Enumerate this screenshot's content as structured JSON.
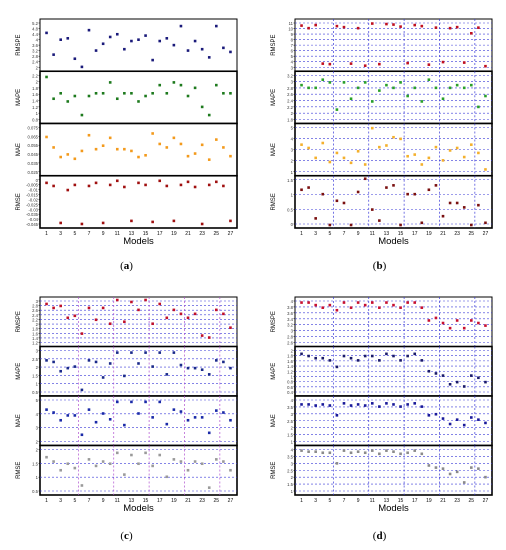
{
  "chart_data": [
    {
      "id": "a",
      "type": "scatter",
      "caption_label": "a",
      "xlabel": "Models",
      "x_ticks": [
        1,
        2,
        3,
        4,
        5,
        6,
        7,
        8,
        9,
        10,
        11,
        12,
        13,
        14,
        15,
        16,
        17,
        18,
        19,
        20,
        21,
        22,
        23,
        24,
        25,
        26,
        27
      ],
      "grid": false,
      "panels": [
        {
          "ylabel": "RMSPE",
          "color": "#1a1a7a",
          "ylim": [
            1.8,
            5.2
          ],
          "tick_labels": [
            "5.2",
            "4.8",
            "4.4",
            "4",
            "3.6",
            "3.2",
            "2.8",
            "2.4",
            "2"
          ],
          "values": [
            4.4,
            2.8,
            3.9,
            4.0,
            2.5,
            1.9,
            4.6,
            3.1,
            3.6,
            4.1,
            4.3,
            3.2,
            3.8,
            3.9,
            4.2,
            2.4,
            3.8,
            4.0,
            3.5,
            4.9,
            3.1,
            3.8,
            3.2,
            2.6,
            4.9,
            3.3,
            3.0
          ]
        },
        {
          "ylabel": "MAPE",
          "color": "#1d7a1d",
          "ylim": [
            0.6,
            2.3
          ],
          "tick_labels": [
            "2.2",
            "2",
            "1.8",
            "1.6",
            "1.4",
            "1.2",
            "1",
            "0.8"
          ],
          "values": [
            2.2,
            1.4,
            1.6,
            1.3,
            1.5,
            0.8,
            1.5,
            1.6,
            1.6,
            2.0,
            1.4,
            1.6,
            1.6,
            1.3,
            1.5,
            1.6,
            1.9,
            1.6,
            2.0,
            1.9,
            1.5,
            1.8,
            1.1,
            0.8,
            1.9,
            1.6,
            1.6
          ]
        },
        {
          "ylabel": "MAE",
          "color": "#f39a1c",
          "ylim": [
            0.025,
            0.078
          ],
          "tick_labels": [
            "0.075",
            "0.065",
            "0.055",
            "0.045",
            "0.035",
            "0.025"
          ],
          "values": [
            0.066,
            0.054,
            0.043,
            0.046,
            0.041,
            0.05,
            0.068,
            0.052,
            0.056,
            0.065,
            0.052,
            0.052,
            0.05,
            0.043,
            0.045,
            0.07,
            0.058,
            0.054,
            0.065,
            0.058,
            0.044,
            0.047,
            0.057,
            0.04,
            0.063,
            0.054,
            0.044
          ]
        },
        {
          "ylabel": "RMSE",
          "color": "#a01010",
          "ylim": [
            -0.045,
            0.0
          ],
          "tick_labels": [
            "0",
            "-0.005",
            "-0.01",
            "-0.015",
            "-0.02",
            "-0.025",
            "-0.03",
            "-0.035",
            "-0.04",
            "-0.045"
          ],
          "values": [
            -0.004,
            -0.007,
            -0.043,
            -0.011,
            -0.006,
            -0.044,
            -0.007,
            -0.004,
            -0.043,
            -0.006,
            -0.002,
            -0.008,
            -0.041,
            -0.004,
            -0.006,
            -0.042,
            -0.002,
            -0.007,
            -0.041,
            -0.006,
            -0.003,
            -0.008,
            -0.044,
            -0.006,
            -0.003,
            -0.007,
            -0.041
          ]
        }
      ]
    },
    {
      "id": "b",
      "type": "scatter",
      "caption_label": "b",
      "xlabel": "Models",
      "x_ticks": [
        1,
        2,
        3,
        4,
        5,
        6,
        7,
        8,
        9,
        10,
        11,
        12,
        13,
        14,
        15,
        16,
        17,
        18,
        19,
        20,
        21,
        22,
        23,
        24,
        25,
        26,
        27
      ],
      "grid": true,
      "panels": [
        {
          "ylabel": "RMSPE",
          "color": "#c01020",
          "ylim": [
            2.2,
            11.2
          ],
          "tick_labels": [
            "11",
            "10",
            "9",
            "8",
            "7",
            "6",
            "5",
            "4",
            "3"
          ],
          "values": [
            10.5,
            10.0,
            10.6,
            3.1,
            3.0,
            10.4,
            10.2,
            3.1,
            10.0,
            2.7,
            10.9,
            3.0,
            10.8,
            10.7,
            10.3,
            3.2,
            10.6,
            10.4,
            2.9,
            10.1,
            3.4,
            10.0,
            10.2,
            3.3,
            9.0,
            10.1,
            2.6
          ]
        },
        {
          "ylabel": "MAPE",
          "color": "#2aa02a",
          "ylim": [
            1.6,
            3.3
          ],
          "tick_labels": [
            "3.2",
            "3",
            "2.8",
            "2.6",
            "2.4",
            "2.2",
            "2",
            "1.8"
          ],
          "values": [
            2.9,
            2.8,
            2.8,
            3.1,
            3.0,
            2.0,
            3.0,
            2.4,
            2.8,
            3.0,
            2.3,
            2.7,
            2.9,
            2.8,
            3.0,
            2.5,
            2.8,
            2.3,
            3.1,
            2.8,
            2.4,
            2.8,
            2.9,
            2.8,
            2.9,
            2.1,
            2.5
          ]
        },
        {
          "ylabel": "MAE",
          "color": "#f4b02c",
          "ylim": [
            0.0,
            5.6
          ],
          "tick_labels": [
            "5",
            "4",
            "3",
            "2",
            "1"
          ],
          "values": [
            3.4,
            3.0,
            1.8,
            3.6,
            1.3,
            2.4,
            1.8,
            1.2,
            2.6,
            1.0,
            5.4,
            3.1,
            3.3,
            4.3,
            4.1,
            2.0,
            2.2,
            1.0,
            1.8,
            3.1,
            1.5,
            2.7,
            3.0,
            1.9,
            3.4,
            2.4,
            0.4
          ]
        },
        {
          "ylabel": "RMSE",
          "color": "#7a1010",
          "ylim": [
            -0.5,
            1.6
          ],
          "tick_labels": [
            "1.5",
            "1",
            "0.5",
            "0"
          ],
          "values": [
            1.1,
            1.2,
            -0.2,
            0.9,
            -0.5,
            0.6,
            0.5,
            -0.5,
            1.0,
            1.6,
            0.2,
            -0.3,
            1.2,
            1.3,
            -0.5,
            0.9,
            0.9,
            -0.4,
            1.1,
            1.3,
            -0.1,
            0.5,
            0.5,
            0.3,
            -0.5,
            0.4,
            -0.4
          ]
        }
      ]
    },
    {
      "id": "c",
      "type": "scatter",
      "caption_label": "c",
      "xlabel": "Models",
      "x_ticks": [
        1,
        2,
        3,
        4,
        5,
        6,
        7,
        8,
        9,
        10,
        11,
        12,
        13,
        14,
        15,
        16,
        17,
        18,
        19,
        20,
        21,
        22,
        23,
        24,
        25,
        26,
        27
      ],
      "grid": true,
      "panels": [
        {
          "ylabel": "RMSPE",
          "color": "#c0102a",
          "ylim": [
            1.0,
            3.2
          ],
          "tick_labels": [
            "3",
            "2.8",
            "2.6",
            "2.4",
            "2.2",
            "2",
            "1.8",
            "1.6",
            "1.4",
            "1.2"
          ],
          "values": [
            3.0,
            2.8,
            2.9,
            2.3,
            2.4,
            1.5,
            2.8,
            2.2,
            2.8,
            2.0,
            3.2,
            2.1,
            3.1,
            2.7,
            3.2,
            2.0,
            3.0,
            2.3,
            2.7,
            2.5,
            2.3,
            2.5,
            1.4,
            1.3,
            2.7,
            2.5,
            1.8
          ]
        },
        {
          "ylabel": "MAPE",
          "color": "#1a2a8a",
          "ylim": [
            0.4,
            3.2
          ],
          "tick_labels": [
            "3",
            "2.5",
            "2",
            "1.5",
            "1",
            "0.5"
          ],
          "values": [
            2.5,
            2.4,
            1.8,
            2.0,
            2.1,
            0.6,
            2.5,
            2.4,
            1.4,
            2.3,
            3.0,
            1.5,
            3.0,
            2.3,
            3.0,
            2.1,
            3.0,
            1.6,
            3.0,
            2.2,
            2.0,
            2.0,
            1.9,
            1.6,
            2.5,
            2.4,
            2.0
          ]
        },
        {
          "ylabel": "MAE",
          "color": "#1a2aa8",
          "ylim": [
            1.0,
            5.5
          ],
          "tick_labels": [
            "5",
            "4",
            "3",
            "2"
          ],
          "values": [
            4.4,
            4.1,
            3.3,
            3.8,
            3.8,
            1.8,
            4.4,
            3.1,
            4.0,
            3.4,
            5.2,
            2.8,
            5.2,
            4.0,
            5.2,
            3.6,
            5.2,
            2.9,
            4.4,
            4.2,
            3.3,
            3.6,
            3.6,
            2.0,
            4.3,
            4.1,
            3.3
          ]
        },
        {
          "ylabel": "RMSE",
          "color": "#9a9a9a",
          "ylim": [
            0.2,
            2.2
          ],
          "tick_labels": [
            "2",
            "1.5",
            "1",
            "0.5"
          ],
          "values": [
            1.8,
            1.6,
            1.2,
            1.5,
            1.3,
            0.5,
            1.7,
            1.4,
            1.6,
            1.5,
            2.0,
            1.0,
            1.9,
            1.5,
            2.0,
            1.4,
            1.9,
            0.9,
            1.7,
            1.6,
            1.2,
            1.6,
            1.5,
            0.4,
            1.7,
            1.6,
            1.2
          ]
        }
      ]
    },
    {
      "id": "d",
      "type": "scatter",
      "caption_label": "d",
      "xlabel": "Models",
      "x_ticks": [
        1,
        2,
        3,
        4,
        5,
        6,
        7,
        8,
        9,
        10,
        11,
        12,
        13,
        14,
        15,
        16,
        17,
        18,
        19,
        20,
        21,
        22,
        23,
        24,
        25,
        26,
        27
      ],
      "grid": true,
      "panels": [
        {
          "ylabel": "RMSPE",
          "color": "#c81030",
          "ylim": [
            2.4,
            4.1
          ],
          "tick_labels": [
            "4",
            "3.8",
            "3.6",
            "3.4",
            "3.2",
            "3",
            "2.8",
            "2.6"
          ],
          "values": [
            4.0,
            4.0,
            3.9,
            3.8,
            3.9,
            3.7,
            4.0,
            3.8,
            4.0,
            3.9,
            4.0,
            3.8,
            4.0,
            3.9,
            3.8,
            4.0,
            4.0,
            3.8,
            3.3,
            3.4,
            3.2,
            3.0,
            3.3,
            3.0,
            3.3,
            3.2,
            3.1
          ]
        },
        {
          "ylabel": "MAPE",
          "color": "#1a1a6a",
          "ylim": [
            0.3,
            2.3
          ],
          "tick_labels": [
            "2",
            "1.8",
            "1.6",
            "1.4",
            "1.2",
            "1",
            "0.8",
            "0.6",
            "0.4"
          ],
          "values": [
            2.1,
            2.0,
            1.9,
            1.9,
            1.8,
            1.5,
            2.0,
            1.9,
            1.8,
            2.0,
            2.0,
            1.8,
            2.1,
            2.0,
            1.8,
            2.0,
            2.1,
            1.8,
            1.3,
            1.2,
            1.1,
            0.7,
            0.8,
            0.6,
            1.1,
            1.0,
            0.8
          ]
        },
        {
          "ylabel": "MAE",
          "color": "#1a1a9a",
          "ylim": [
            0.8,
            4.8
          ],
          "tick_labels": [
            "4",
            "3.5",
            "3",
            "2.5",
            "2",
            "1.5",
            "1"
          ],
          "values": [
            4.3,
            4.3,
            4.2,
            4.3,
            4.2,
            3.3,
            4.4,
            4.2,
            4.3,
            4.2,
            4.4,
            4.1,
            4.4,
            4.3,
            4.1,
            4.3,
            4.4,
            4.1,
            3.3,
            3.4,
            3.0,
            2.5,
            2.9,
            2.4,
            3.1,
            2.9,
            2.6
          ]
        },
        {
          "ylabel": "RMSE",
          "color": "#8a8a8a",
          "ylim": [
            0.7,
            4.8
          ],
          "tick_labels": [
            "4",
            "3.5",
            "3",
            "2.5",
            "2",
            "1.5",
            "1"
          ],
          "values": [
            4.6,
            4.5,
            4.5,
            4.4,
            4.4,
            3.4,
            4.6,
            4.4,
            4.5,
            4.4,
            4.6,
            4.3,
            4.6,
            4.5,
            4.3,
            4.4,
            4.6,
            4.3,
            3.2,
            3.0,
            2.9,
            2.4,
            2.6,
            1.6,
            3.0,
            2.9,
            2.1
          ]
        }
      ]
    }
  ]
}
